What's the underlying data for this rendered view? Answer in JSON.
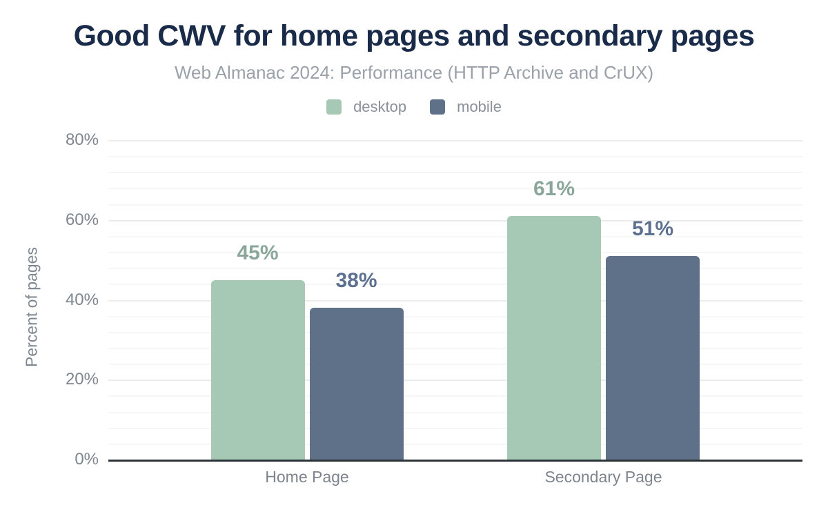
{
  "figure": {
    "title": "Good CWV for home pages and secondary pages",
    "subtitle": "Web Almanac 2024: Performance (HTTP Archive and CrUX)"
  },
  "chart_data": {
    "type": "bar",
    "title": "Good CWV for home pages and secondary pages",
    "subtitle": "Web Almanac 2024: Performance (HTTP Archive and CrUX)",
    "categories": [
      "Home Page",
      "Secondary Page"
    ],
    "series": [
      {
        "name": "desktop",
        "values": [
          45,
          61
        ],
        "labels": [
          "45%",
          "61%"
        ],
        "color": "#a6c9b5",
        "label_color": "#8aa69b"
      },
      {
        "name": "mobile",
        "values": [
          38,
          51
        ],
        "labels": [
          "38%",
          "51%"
        ],
        "color": "#5e7189",
        "label_color": "#5d7090"
      }
    ],
    "xlabel": "",
    "ylabel": "Percent of pages",
    "ylim": [
      0,
      80
    ],
    "yticks": [
      0,
      20,
      40,
      60,
      80
    ],
    "ytick_labels": [
      "0%",
      "20%",
      "40%",
      "60%",
      "80%"
    ],
    "grid": {
      "on": true,
      "minor_step": 4,
      "major_step": 20
    },
    "legend_position": "top-center"
  },
  "colors": {
    "background": "#ffffff",
    "title": "#1a2b49",
    "subtitle": "#9aa1a9",
    "axis_line": "#2d3439",
    "tick_text": "#7e868f",
    "grid_minor": "#f5f6f6",
    "grid_major": "#ebeded"
  }
}
